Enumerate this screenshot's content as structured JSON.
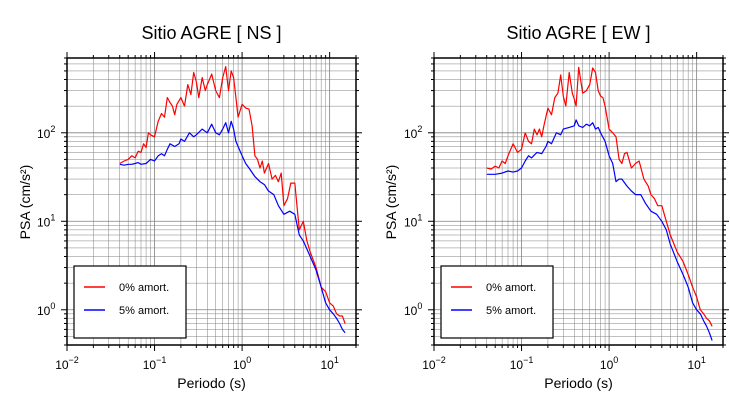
{
  "colors": {
    "series_0pct": "#ff0000",
    "series_5pct": "#0000ff",
    "grid": "#808080",
    "frame": "#000000"
  },
  "chart_data": [
    {
      "type": "line",
      "title": "Sitio AGRE [ NS ]",
      "xlabel": "Periodo (s)",
      "ylabel": "PSA (cm/s²)",
      "xscale": "log",
      "yscale": "log",
      "xlim": [
        0.01,
        20
      ],
      "ylim": [
        0.4,
        700
      ],
      "xticks": [
        {
          "v": 0.01,
          "b": "10",
          "e": "−2"
        },
        {
          "v": 0.1,
          "b": "10",
          "e": "−1"
        },
        {
          "v": 1,
          "b": "10",
          "e": "0"
        },
        {
          "v": 10,
          "b": "10",
          "e": "1"
        }
      ],
      "yticks": [
        {
          "v": 1,
          "b": "10",
          "e": "0"
        },
        {
          "v": 10,
          "b": "10",
          "e": "1"
        },
        {
          "v": 100,
          "b": "10",
          "e": "2"
        }
      ],
      "grid": true,
      "legend_position": "bottom-left",
      "series": [
        {
          "name": "0% amort.",
          "color": "#ff0000",
          "points": [
            [
              0.04,
              45
            ],
            [
              0.045,
              48
            ],
            [
              0.05,
              50
            ],
            [
              0.055,
              55
            ],
            [
              0.06,
              52
            ],
            [
              0.065,
              62
            ],
            [
              0.07,
              60
            ],
            [
              0.075,
              75
            ],
            [
              0.08,
              68
            ],
            [
              0.085,
              100
            ],
            [
              0.09,
              95
            ],
            [
              0.1,
              90
            ],
            [
              0.11,
              135
            ],
            [
              0.12,
              165
            ],
            [
              0.13,
              150
            ],
            [
              0.14,
              250
            ],
            [
              0.15,
              220
            ],
            [
              0.16,
              200
            ],
            [
              0.17,
              160
            ],
            [
              0.18,
              210
            ],
            [
              0.2,
              250
            ],
            [
              0.22,
              200
            ],
            [
              0.24,
              350
            ],
            [
              0.26,
              270
            ],
            [
              0.28,
              480
            ],
            [
              0.3,
              380
            ],
            [
              0.32,
              250
            ],
            [
              0.35,
              420
            ],
            [
              0.38,
              300
            ],
            [
              0.4,
              350
            ],
            [
              0.45,
              460
            ],
            [
              0.5,
              300
            ],
            [
              0.55,
              250
            ],
            [
              0.6,
              420
            ],
            [
              0.65,
              560
            ],
            [
              0.7,
              300
            ],
            [
              0.75,
              500
            ],
            [
              0.8,
              420
            ],
            [
              0.85,
              250
            ],
            [
              0.9,
              150
            ],
            [
              1.0,
              210
            ],
            [
              1.1,
              190
            ],
            [
              1.2,
              185
            ],
            [
              1.3,
              120
            ],
            [
              1.4,
              55
            ],
            [
              1.5,
              50
            ],
            [
              1.6,
              40
            ],
            [
              1.7,
              48
            ],
            [
              1.8,
              35
            ],
            [
              2.0,
              45
            ],
            [
              2.2,
              30
            ],
            [
              2.4,
              33
            ],
            [
              2.6,
              28
            ],
            [
              2.8,
              35
            ],
            [
              3.0,
              15
            ],
            [
              3.3,
              18
            ],
            [
              3.6,
              27
            ],
            [
              4.0,
              27
            ],
            [
              4.5,
              8
            ],
            [
              5.0,
              10
            ],
            [
              5.5,
              6
            ],
            [
              6.0,
              4.5
            ],
            [
              7.0,
              3.0
            ],
            [
              8.0,
              1.8
            ],
            [
              9.0,
              1.6
            ],
            [
              10.0,
              1.2
            ],
            [
              11.0,
              1.1
            ],
            [
              12.0,
              0.9
            ],
            [
              13.0,
              0.85
            ],
            [
              14.0,
              0.85
            ],
            [
              15.0,
              0.7
            ]
          ]
        },
        {
          "name": "5% amort.",
          "color": "#0000ff",
          "points": [
            [
              0.04,
              44
            ],
            [
              0.045,
              43
            ],
            [
              0.05,
              44
            ],
            [
              0.055,
              44
            ],
            [
              0.06,
              45
            ],
            [
              0.065,
              46
            ],
            [
              0.07,
              44
            ],
            [
              0.08,
              45
            ],
            [
              0.09,
              50
            ],
            [
              0.1,
              48
            ],
            [
              0.11,
              55
            ],
            [
              0.12,
              58
            ],
            [
              0.13,
              55
            ],
            [
              0.14,
              65
            ],
            [
              0.15,
              75
            ],
            [
              0.17,
              70
            ],
            [
              0.19,
              75
            ],
            [
              0.2,
              85
            ],
            [
              0.22,
              80
            ],
            [
              0.25,
              100
            ],
            [
              0.28,
              90
            ],
            [
              0.3,
              95
            ],
            [
              0.35,
              110
            ],
            [
              0.4,
              100
            ],
            [
              0.45,
              125
            ],
            [
              0.5,
              100
            ],
            [
              0.55,
              95
            ],
            [
              0.6,
              110
            ],
            [
              0.65,
              130
            ],
            [
              0.7,
              100
            ],
            [
              0.75,
              135
            ],
            [
              0.8,
              110
            ],
            [
              0.85,
              80
            ],
            [
              0.9,
              70
            ],
            [
              1.0,
              55
            ],
            [
              1.1,
              45
            ],
            [
              1.2,
              40
            ],
            [
              1.4,
              32
            ],
            [
              1.6,
              28
            ],
            [
              1.8,
              26
            ],
            [
              2.0,
              22
            ],
            [
              2.3,
              20
            ],
            [
              2.6,
              15
            ],
            [
              3.0,
              12
            ],
            [
              3.5,
              13
            ],
            [
              4.0,
              12
            ],
            [
              4.5,
              7
            ],
            [
              5.0,
              6
            ],
            [
              6.0,
              4.0
            ],
            [
              7.0,
              2.8
            ],
            [
              8.0,
              1.8
            ],
            [
              9.0,
              1.2
            ],
            [
              10.0,
              1.0
            ],
            [
              11.0,
              0.9
            ],
            [
              12.0,
              0.8
            ],
            [
              13.0,
              0.7
            ],
            [
              14.0,
              0.6
            ],
            [
              15.0,
              0.55
            ]
          ]
        }
      ]
    },
    {
      "type": "line",
      "title": "Sitio AGRE [ EW ]",
      "xlabel": "Periodo (s)",
      "ylabel": "PSA (cm/s²)",
      "xscale": "log",
      "yscale": "log",
      "xlim": [
        0.01,
        20
      ],
      "ylim": [
        0.4,
        700
      ],
      "xticks": [
        {
          "v": 0.01,
          "b": "10",
          "e": "−2"
        },
        {
          "v": 0.1,
          "b": "10",
          "e": "−1"
        },
        {
          "v": 1,
          "b": "10",
          "e": "0"
        },
        {
          "v": 10,
          "b": "10",
          "e": "1"
        }
      ],
      "yticks": [
        {
          "v": 1,
          "b": "10",
          "e": "0"
        },
        {
          "v": 10,
          "b": "10",
          "e": "1"
        },
        {
          "v": 100,
          "b": "10",
          "e": "2"
        }
      ],
      "grid": true,
      "legend_position": "bottom-left",
      "series": [
        {
          "name": "0% amort.",
          "color": "#ff0000",
          "points": [
            [
              0.04,
              40
            ],
            [
              0.045,
              39
            ],
            [
              0.05,
              42
            ],
            [
              0.055,
              40
            ],
            [
              0.06,
              48
            ],
            [
              0.065,
              45
            ],
            [
              0.07,
              55
            ],
            [
              0.08,
              75
            ],
            [
              0.09,
              60
            ],
            [
              0.1,
              65
            ],
            [
              0.11,
              100
            ],
            [
              0.12,
              80
            ],
            [
              0.13,
              75
            ],
            [
              0.14,
              110
            ],
            [
              0.15,
              95
            ],
            [
              0.16,
              110
            ],
            [
              0.17,
              90
            ],
            [
              0.18,
              120
            ],
            [
              0.2,
              190
            ],
            [
              0.22,
              160
            ],
            [
              0.24,
              250
            ],
            [
              0.26,
              280
            ],
            [
              0.28,
              450
            ],
            [
              0.3,
              260
            ],
            [
              0.32,
              200
            ],
            [
              0.35,
              480
            ],
            [
              0.38,
              280
            ],
            [
              0.4,
              240
            ],
            [
              0.42,
              200
            ],
            [
              0.45,
              550
            ],
            [
              0.5,
              280
            ],
            [
              0.55,
              300
            ],
            [
              0.6,
              350
            ],
            [
              0.65,
              540
            ],
            [
              0.7,
              480
            ],
            [
              0.75,
              300
            ],
            [
              0.8,
              260
            ],
            [
              0.85,
              250
            ],
            [
              0.9,
              200
            ],
            [
              1.0,
              110
            ],
            [
              1.1,
              100
            ],
            [
              1.2,
              90
            ],
            [
              1.3,
              50
            ],
            [
              1.4,
              45
            ],
            [
              1.5,
              58
            ],
            [
              1.6,
              60
            ],
            [
              1.8,
              40
            ],
            [
              2.0,
              45
            ],
            [
              2.2,
              48
            ],
            [
              2.5,
              30
            ],
            [
              2.8,
              25
            ],
            [
              3.0,
              20
            ],
            [
              3.3,
              18
            ],
            [
              3.6,
              15
            ],
            [
              4.0,
              15
            ],
            [
              4.5,
              10
            ],
            [
              5.0,
              7
            ],
            [
              6.0,
              4.5
            ],
            [
              7.0,
              3.5
            ],
            [
              8.0,
              2.5
            ],
            [
              9.0,
              1.8
            ],
            [
              10.0,
              1.4
            ],
            [
              11.0,
              1.0
            ],
            [
              12.0,
              0.9
            ],
            [
              13.0,
              0.8
            ],
            [
              14.0,
              0.75
            ],
            [
              15.0,
              0.65
            ]
          ]
        },
        {
          "name": "5% amort.",
          "color": "#0000ff",
          "points": [
            [
              0.04,
              34
            ],
            [
              0.05,
              34
            ],
            [
              0.06,
              35
            ],
            [
              0.07,
              37
            ],
            [
              0.08,
              36
            ],
            [
              0.09,
              37
            ],
            [
              0.1,
              40
            ],
            [
              0.11,
              48
            ],
            [
              0.12,
              55
            ],
            [
              0.13,
              52
            ],
            [
              0.14,
              56
            ],
            [
              0.15,
              60
            ],
            [
              0.17,
              58
            ],
            [
              0.19,
              70
            ],
            [
              0.2,
              80
            ],
            [
              0.22,
              75
            ],
            [
              0.25,
              100
            ],
            [
              0.28,
              95
            ],
            [
              0.3,
              110
            ],
            [
              0.35,
              115
            ],
            [
              0.4,
              120
            ],
            [
              0.42,
              140
            ],
            [
              0.45,
              120
            ],
            [
              0.5,
              115
            ],
            [
              0.55,
              125
            ],
            [
              0.6,
              120
            ],
            [
              0.65,
              130
            ],
            [
              0.7,
              110
            ],
            [
              0.75,
              115
            ],
            [
              0.8,
              100
            ],
            [
              0.9,
              80
            ],
            [
              1.0,
              55
            ],
            [
              1.1,
              45
            ],
            [
              1.2,
              28
            ],
            [
              1.3,
              30
            ],
            [
              1.4,
              30
            ],
            [
              1.6,
              25
            ],
            [
              1.8,
              22
            ],
            [
              2.0,
              20
            ],
            [
              2.3,
              20
            ],
            [
              2.6,
              16
            ],
            [
              3.0,
              13
            ],
            [
              3.5,
              12
            ],
            [
              4.0,
              10
            ],
            [
              4.5,
              8
            ],
            [
              5.0,
              5.5
            ],
            [
              6.0,
              3.5
            ],
            [
              7.0,
              2.5
            ],
            [
              8.0,
              1.8
            ],
            [
              9.0,
              1.2
            ],
            [
              10.0,
              1.0
            ],
            [
              11.0,
              0.9
            ],
            [
              12.0,
              0.75
            ],
            [
              13.0,
              0.65
            ],
            [
              14.0,
              0.55
            ],
            [
              15.0,
              0.45
            ]
          ]
        }
      ]
    }
  ]
}
